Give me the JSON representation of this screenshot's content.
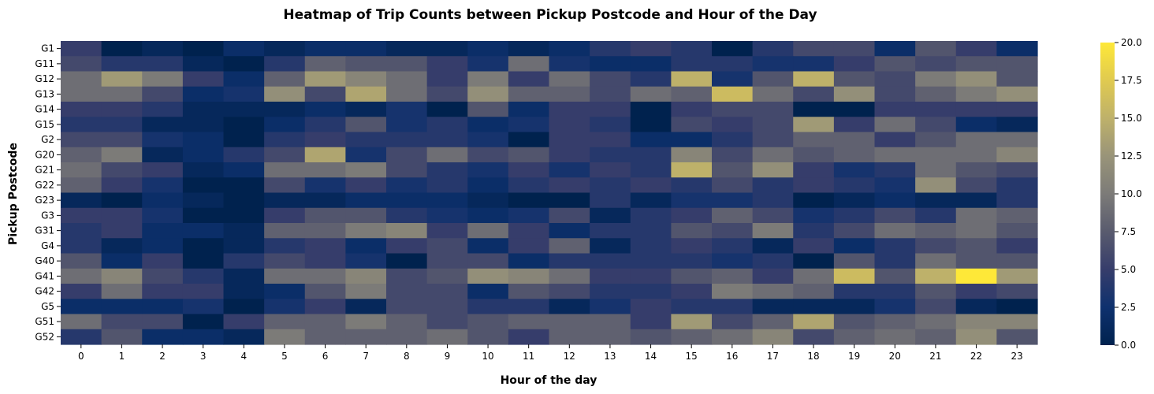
{
  "chart_data": {
    "type": "heatmap",
    "title": "Heatmap of Trip Counts between Pickup Postcode and Hour of the Day",
    "xlabel": "Hour of the day",
    "ylabel": "Pickup Postcode",
    "x": [
      "0",
      "1",
      "2",
      "3",
      "4",
      "5",
      "6",
      "7",
      "8",
      "9",
      "10",
      "11",
      "12",
      "13",
      "14",
      "15",
      "16",
      "17",
      "18",
      "19",
      "20",
      "21",
      "22",
      "23"
    ],
    "y": [
      "G1",
      "G11",
      "G12",
      "G13",
      "G14",
      "G15",
      "G2",
      "G20",
      "G21",
      "G22",
      "G23",
      "G3",
      "G31",
      "G4",
      "G40",
      "G41",
      "G42",
      "G5",
      "G51",
      "G52"
    ],
    "values": [
      [
        5,
        0,
        1,
        0,
        2,
        1,
        2,
        2,
        1,
        1,
        2,
        1,
        2,
        4,
        5,
        4,
        0,
        4,
        6,
        6,
        2,
        7,
        5,
        2
      ],
      [
        6,
        4,
        4,
        1,
        0,
        4,
        8,
        7,
        7,
        5,
        3,
        9,
        3,
        2,
        2,
        4,
        4,
        3,
        3,
        5,
        7,
        6,
        7,
        7
      ],
      [
        9,
        13,
        10,
        5,
        2,
        8,
        13,
        11,
        9,
        5,
        10,
        5,
        9,
        6,
        4,
        15,
        3,
        7,
        15,
        7,
        6,
        10,
        12,
        7
      ],
      [
        9,
        9,
        6,
        2,
        3,
        12,
        6,
        14,
        9,
        6,
        12,
        8,
        8,
        6,
        9,
        8,
        16,
        9,
        6,
        12,
        6,
        8,
        10,
        12
      ],
      [
        5,
        5,
        4,
        1,
        1,
        1,
        2,
        1,
        3,
        0,
        7,
        2,
        5,
        5,
        0,
        5,
        6,
        6,
        0,
        0,
        5,
        5,
        5,
        5
      ],
      [
        4,
        4,
        1,
        1,
        0,
        2,
        4,
        7,
        3,
        4,
        2,
        3,
        5,
        4,
        0,
        6,
        5,
        6,
        13,
        5,
        9,
        6,
        2,
        1
      ],
      [
        6,
        6,
        3,
        2,
        0,
        4,
        5,
        4,
        4,
        4,
        3,
        0,
        5,
        5,
        2,
        2,
        4,
        6,
        8,
        8,
        5,
        7,
        9,
        9
      ],
      [
        8,
        10,
        1,
        2,
        4,
        6,
        14,
        3,
        6,
        9,
        6,
        7,
        5,
        4,
        4,
        11,
        6,
        9,
        7,
        8,
        9,
        9,
        9,
        11
      ],
      [
        9,
        6,
        5,
        1,
        2,
        9,
        9,
        10,
        6,
        4,
        3,
        5,
        3,
        5,
        4,
        15,
        7,
        12,
        5,
        3,
        4,
        9,
        7,
        6
      ],
      [
        8,
        5,
        3,
        0,
        0,
        6,
        3,
        5,
        3,
        4,
        2,
        4,
        5,
        4,
        5,
        4,
        6,
        4,
        5,
        4,
        3,
        12,
        6,
        4
      ],
      [
        1,
        0,
        2,
        1,
        0,
        1,
        1,
        2,
        2,
        2,
        1,
        0,
        0,
        4,
        1,
        3,
        3,
        4,
        0,
        1,
        2,
        1,
        1,
        4
      ],
      [
        5,
        5,
        3,
        0,
        0,
        5,
        7,
        7,
        4,
        3,
        2,
        3,
        6,
        1,
        4,
        5,
        8,
        6,
        3,
        4,
        6,
        4,
        9,
        8
      ],
      [
        4,
        5,
        2,
        2,
        1,
        8,
        8,
        10,
        11,
        5,
        9,
        5,
        2,
        4,
        4,
        7,
        6,
        10,
        4,
        6,
        9,
        8,
        9,
        7
      ],
      [
        4,
        1,
        2,
        0,
        1,
        4,
        5,
        2,
        5,
        6,
        2,
        5,
        8,
        1,
        4,
        5,
        4,
        1,
        5,
        2,
        4,
        6,
        7,
        5
      ],
      [
        7,
        2,
        5,
        0,
        4,
        6,
        5,
        3,
        0,
        6,
        6,
        2,
        4,
        4,
        4,
        4,
        3,
        4,
        0,
        7,
        4,
        9,
        7,
        7
      ],
      [
        9,
        11,
        6,
        4,
        1,
        9,
        9,
        11,
        6,
        7,
        12,
        11,
        9,
        5,
        5,
        7,
        8,
        5,
        9,
        16,
        7,
        15,
        20,
        13
      ],
      [
        5,
        9,
        5,
        5,
        1,
        2,
        7,
        10,
        6,
        6,
        2,
        7,
        6,
        4,
        4,
        5,
        10,
        9,
        8,
        4,
        4,
        7,
        5,
        6
      ],
      [
        2,
        2,
        2,
        3,
        0,
        3,
        5,
        1,
        6,
        6,
        4,
        4,
        1,
        3,
        5,
        4,
        4,
        1,
        1,
        1,
        3,
        6,
        1,
        0
      ],
      [
        9,
        6,
        6,
        0,
        5,
        8,
        8,
        10,
        8,
        6,
        7,
        8,
        8,
        8,
        5,
        13,
        6,
        8,
        14,
        7,
        8,
        9,
        11,
        11
      ],
      [
        4,
        7,
        2,
        2,
        1,
        10,
        8,
        8,
        8,
        9,
        7,
        5,
        8,
        8,
        7,
        8,
        9,
        11,
        6,
        8,
        9,
        8,
        12,
        7
      ]
    ],
    "vmin": 0,
    "vmax": 20,
    "colormap": "cividis",
    "colorbar_ticks": [
      "0.0",
      "2.5",
      "5.0",
      "7.5",
      "10.0",
      "12.5",
      "15.0",
      "17.5",
      "20.0"
    ],
    "colorbar_values": [
      0,
      2.5,
      5,
      7.5,
      10,
      12.5,
      15,
      17.5,
      20
    ]
  }
}
